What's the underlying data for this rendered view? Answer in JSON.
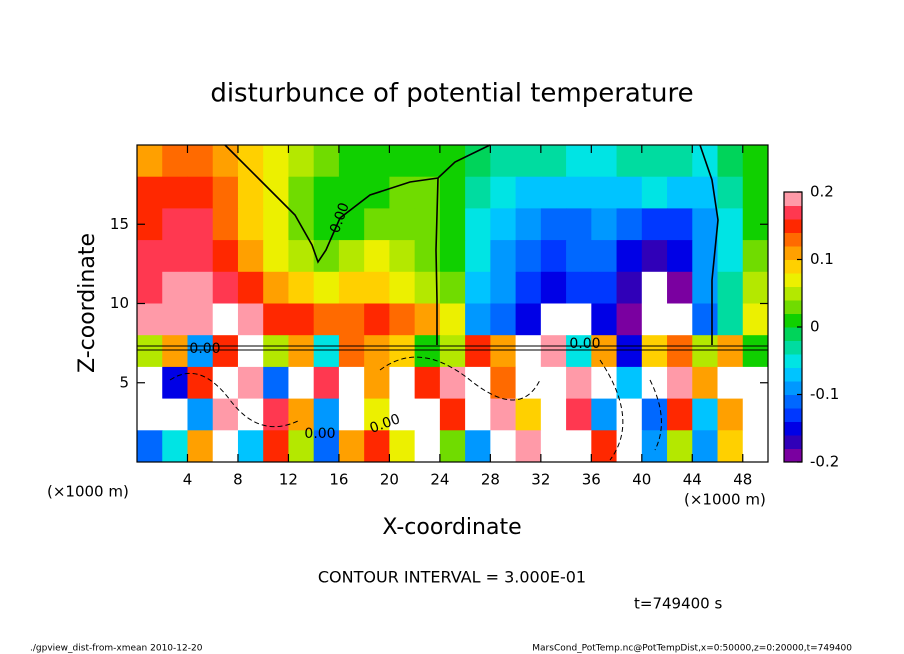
{
  "chart_data": {
    "type": "contour",
    "title": "disturbunce of potential temperature",
    "x_label": "X-coordinate",
    "y_label": "Z-coordinate",
    "x_unit": "(×1000 m)",
    "xlim": [
      0,
      50
    ],
    "ylim": [
      0,
      20
    ],
    "xticks": [
      4,
      8,
      12,
      16,
      20,
      24,
      28,
      32,
      36,
      40,
      44,
      48
    ],
    "yticks": [
      5,
      10,
      15
    ],
    "clim": [
      -0.2,
      0.2
    ],
    "cticks": [
      0.2,
      0.1,
      0,
      -0.1,
      -0.2
    ],
    "colormap": [
      "#7a00a0",
      "#3000b8",
      "#0000e6",
      "#0038ff",
      "#0068ff",
      "#0098ff",
      "#00c4ff",
      "#00e4e4",
      "#00dca0",
      "#00d45a",
      "#10d000",
      "#70dc00",
      "#b4e800",
      "#ecf000",
      "#ffd000",
      "#ffa000",
      "#ff6a00",
      "#ff2800",
      "#ff3850",
      "#ff9aa8"
    ],
    "out_of_range_color": "#ffffff",
    "z": [
      [
        0.1,
        0.12,
        0.12,
        0.1,
        0.08,
        0.06,
        0.04,
        0.02,
        0.01,
        0.0,
        0.0,
        0.01,
        0.01,
        -0.02,
        -0.03,
        -0.04,
        -0.04,
        -0.05,
        -0.05,
        -0.04,
        -0.03,
        -0.04,
        -0.06,
        -0.02,
        0.0
      ],
      [
        0.14,
        0.15,
        0.14,
        0.12,
        0.08,
        0.06,
        0.03,
        0.01,
        0.0,
        0.01,
        0.02,
        0.02,
        0.0,
        -0.04,
        -0.06,
        -0.08,
        -0.08,
        -0.08,
        -0.07,
        -0.07,
        -0.06,
        -0.07,
        -0.08,
        -0.04,
        0.0
      ],
      [
        0.15,
        0.17,
        0.16,
        0.13,
        0.09,
        0.06,
        0.03,
        0.0,
        0.01,
        0.02,
        0.03,
        0.02,
        0.0,
        -0.05,
        -0.08,
        -0.1,
        -0.11,
        -0.11,
        -0.1,
        -0.12,
        -0.14,
        -0.13,
        -0.1,
        -0.05,
        0.01
      ],
      [
        0.16,
        0.17,
        0.17,
        0.15,
        0.1,
        0.07,
        0.04,
        0.03,
        0.04,
        0.06,
        0.05,
        0.03,
        0.0,
        -0.06,
        -0.09,
        -0.12,
        -0.13,
        -0.12,
        -0.11,
        -0.15,
        -0.17,
        -0.16,
        -0.1,
        -0.05,
        0.02
      ],
      [
        0.17,
        0.18,
        0.19,
        0.17,
        0.14,
        0.1,
        0.08,
        0.07,
        0.08,
        0.09,
        0.07,
        0.05,
        0.02,
        -0.08,
        -0.1,
        -0.14,
        -0.15,
        -0.14,
        -0.13,
        -0.18,
        -0.21,
        -0.19,
        -0.1,
        -0.04,
        0.04
      ],
      [
        0.18,
        0.19,
        0.2,
        0.21,
        0.18,
        0.15,
        0.14,
        0.13,
        0.13,
        0.14,
        0.12,
        0.1,
        0.06,
        -0.1,
        -0.12,
        -0.16,
        -0.21,
        -0.22,
        -0.15,
        -0.2,
        -0.24,
        -0.22,
        -0.12,
        -0.03,
        0.06
      ],
      [
        0.05,
        0.1,
        -0.1,
        0.15,
        0.22,
        0.05,
        0.1,
        -0.05,
        0.12,
        0.1,
        0.08,
        0.0,
        0.05,
        0.15,
        0.1,
        0.22,
        0.18,
        -0.05,
        0.1,
        -0.15,
        0.08,
        0.12,
        0.05,
        0.1,
        0.0
      ],
      [
        0.22,
        -0.15,
        0.14,
        0.22,
        0.18,
        -0.12,
        0.22,
        0.16,
        0.22,
        0.1,
        0.22,
        0.15,
        0.2,
        0.22,
        0.12,
        0.22,
        0.22,
        0.2,
        0.22,
        -0.08,
        0.22,
        0.18,
        0.1,
        0.22,
        0.22
      ],
      [
        0.22,
        0.22,
        -0.1,
        0.18,
        0.22,
        0.16,
        0.1,
        -0.1,
        0.22,
        0.06,
        0.22,
        0.22,
        0.14,
        0.22,
        0.2,
        0.08,
        0.22,
        0.16,
        -0.1,
        0.22,
        -0.12,
        0.14,
        -0.08,
        0.1,
        0.22
      ],
      [
        -0.12,
        -0.05,
        0.1,
        0.22,
        -0.08,
        0.15,
        0.04,
        -0.12,
        0.1,
        0.14,
        0.06,
        0.22,
        0.02,
        -0.1,
        0.22,
        0.18,
        0.22,
        0.22,
        0.14,
        0.22,
        -0.1,
        0.04,
        -0.1,
        0.08,
        0.22
      ]
    ],
    "contour_labels": [
      "0.00",
      "0.00",
      "0.00",
      "0.00",
      "0.00"
    ],
    "contour_interval_text": "CONTOUR INTERVAL = 3.000E-01",
    "time_text": "t=749400 s",
    "footer_left": "./gpview_dist-from-xmean  2010-12-20",
    "footer_right": "MarsCond_PotTemp.nc@PotTempDist,x=0:50000,z=0:20000,t=749400"
  }
}
